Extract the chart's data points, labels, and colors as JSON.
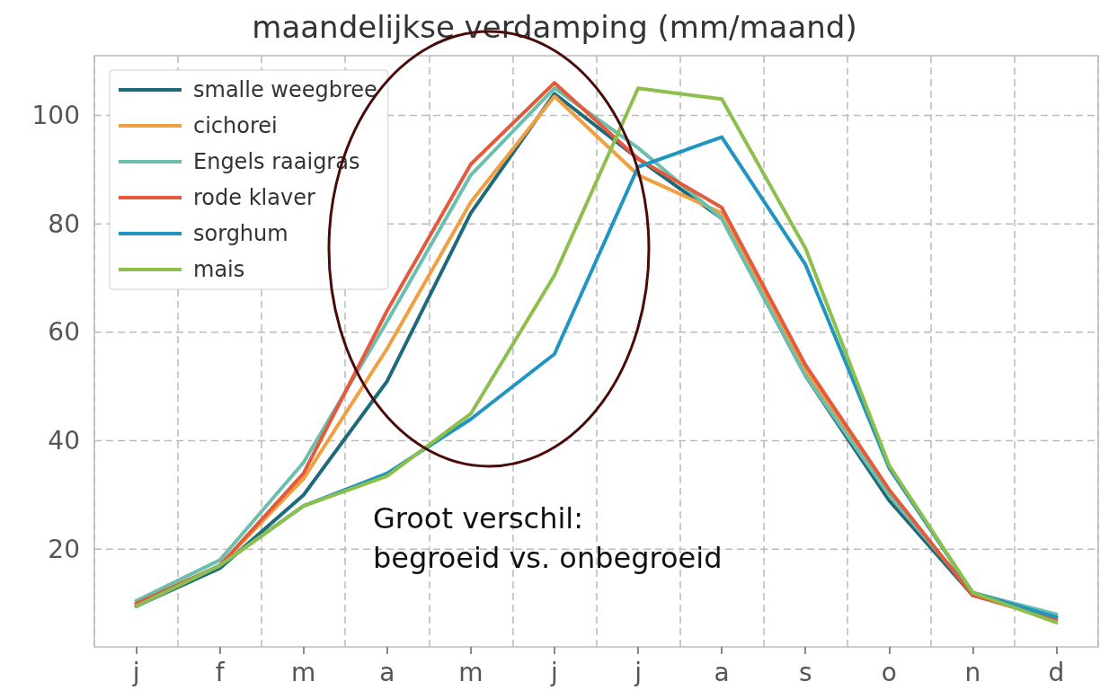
{
  "chart_data": {
    "type": "line",
    "title": "maandelijkse verdamping (mm/maand)",
    "categories": [
      "j",
      "f",
      "m",
      "a",
      "m",
      "j",
      "j",
      "a",
      "s",
      "o",
      "n",
      "d"
    ],
    "series": [
      {
        "name": "smalle weegbree",
        "color": "#1f6a7a",
        "values": [
          9.5,
          16.5,
          30,
          51,
          82,
          104,
          92,
          81,
          52,
          29,
          11.5,
          7.5
        ]
      },
      {
        "name": "cichorei",
        "color": "#f0a040",
        "values": [
          10,
          17,
          33,
          57,
          84,
          103.5,
          89,
          82,
          53,
          30,
          12,
          7.5
        ]
      },
      {
        "name": "Engels raaigras",
        "color": "#6cbfae",
        "values": [
          10.5,
          18,
          36,
          62,
          89,
          105,
          94,
          81,
          52,
          30,
          12,
          8
        ]
      },
      {
        "name": "rode klaver",
        "color": "#e45a3c",
        "values": [
          10,
          17,
          34,
          64,
          91,
          106,
          92,
          83,
          54,
          31,
          11.5,
          7
        ]
      },
      {
        "name": "sorghum",
        "color": "#1f95c0",
        "values": [
          9.5,
          17,
          28,
          34,
          44,
          56,
          90.5,
          96,
          72.5,
          35,
          12,
          7.5
        ]
      },
      {
        "name": "mais",
        "color": "#8cbf4c",
        "values": [
          9.5,
          17,
          28,
          33.5,
          45,
          70.5,
          105,
          103,
          75.5,
          35.5,
          12,
          6.5
        ]
      }
    ],
    "ylim": [
      2,
      111
    ],
    "yticks": [
      20,
      40,
      60,
      80,
      100
    ],
    "grid": true,
    "legend": "top left",
    "marker": "none",
    "line_style": "solid",
    "annotations": [
      "Groot verschil:\nbegroeid vs. onbegroeid"
    ]
  }
}
